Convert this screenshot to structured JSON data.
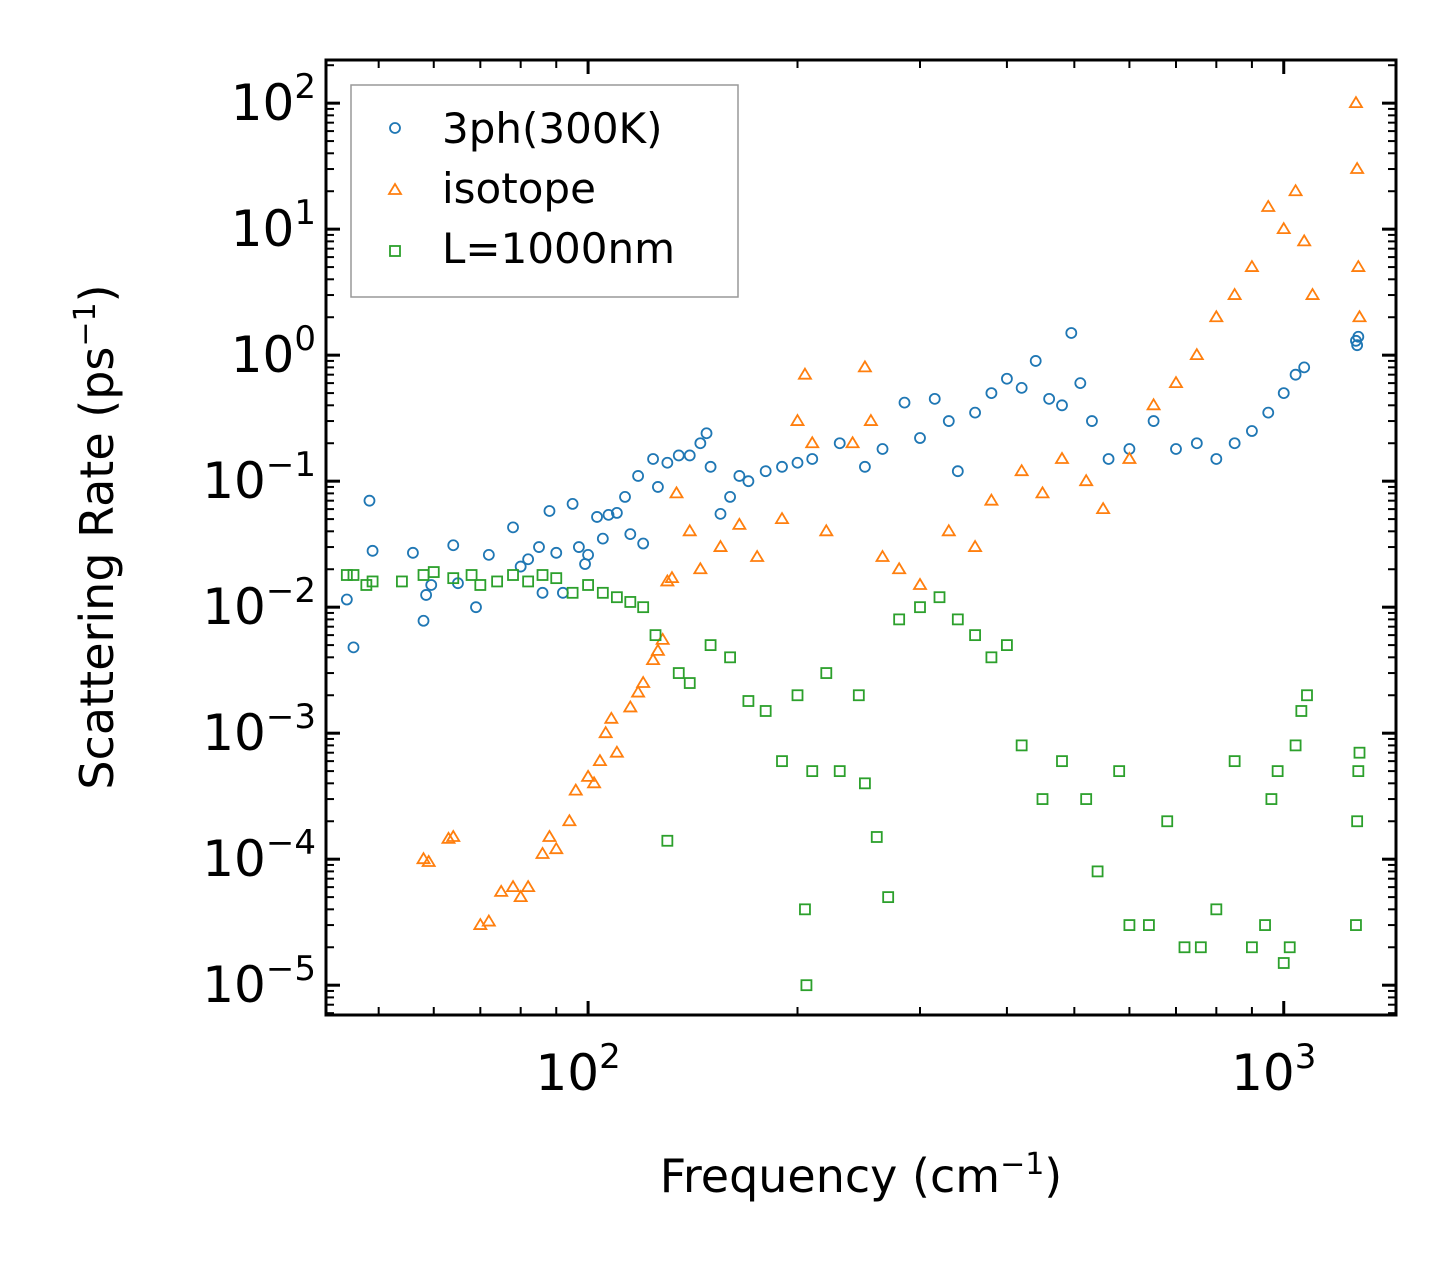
{
  "chart_data": {
    "type": "scatter",
    "xscale": "log",
    "yscale": "log",
    "xlabel": "Frequency (cm",
    "xlabel_sup": "−1",
    "xlabel_tail": ")",
    "ylabel": "Scattering Rate (ps",
    "ylabel_sup": "−1",
    "ylabel_tail": ")",
    "xlim": [
      42,
      1450
    ],
    "ylim": [
      5.8e-06,
      220
    ],
    "x_ticks": [
      {
        "value": 100,
        "base": "10",
        "exp": "2"
      },
      {
        "value": 1000,
        "base": "10",
        "exp": "3"
      }
    ],
    "y_ticks": [
      {
        "value": 100,
        "base": "10",
        "exp": "2"
      },
      {
        "value": 10,
        "base": "10",
        "exp": "1"
      },
      {
        "value": 1,
        "base": "10",
        "exp": "0"
      },
      {
        "value": 0.1,
        "base": "10",
        "exp": "−1"
      },
      {
        "value": 0.01,
        "base": "10",
        "exp": "−2"
      },
      {
        "value": 0.001,
        "base": "10",
        "exp": "−3"
      },
      {
        "value": 0.0001,
        "base": "10",
        "exp": "−4"
      },
      {
        "value": 1e-05,
        "base": "10",
        "exp": "−5"
      }
    ],
    "legend_position": "top-left",
    "series": [
      {
        "name": "3ph(300K)",
        "marker": "circle",
        "color": "#1f77b4",
        "points": [
          [
            45,
            0.0115
          ],
          [
            46,
            0.0048
          ],
          [
            48.5,
            0.07
          ],
          [
            49,
            0.028
          ],
          [
            56,
            0.027
          ],
          [
            58,
            0.0078
          ],
          [
            58.5,
            0.0125
          ],
          [
            59.5,
            0.015
          ],
          [
            64,
            0.031
          ],
          [
            65,
            0.0155
          ],
          [
            69,
            0.01
          ],
          [
            72,
            0.026
          ],
          [
            78,
            0.043
          ],
          [
            80,
            0.021
          ],
          [
            82,
            0.024
          ],
          [
            85,
            0.03
          ],
          [
            86,
            0.013
          ],
          [
            88,
            0.058
          ],
          [
            90,
            0.027
          ],
          [
            92,
            0.013
          ],
          [
            95,
            0.066
          ],
          [
            97,
            0.03
          ],
          [
            99,
            0.022
          ],
          [
            100,
            0.026
          ],
          [
            103,
            0.052
          ],
          [
            105,
            0.035
          ],
          [
            107,
            0.054
          ],
          [
            110,
            0.056
          ],
          [
            113,
            0.075
          ],
          [
            115,
            0.038
          ],
          [
            118,
            0.11
          ],
          [
            120,
            0.032
          ],
          [
            124,
            0.15
          ],
          [
            126,
            0.09
          ],
          [
            130,
            0.14
          ],
          [
            135,
            0.16
          ],
          [
            140,
            0.16
          ],
          [
            145,
            0.2
          ],
          [
            148,
            0.24
          ],
          [
            150,
            0.13
          ],
          [
            155,
            0.055
          ],
          [
            160,
            0.075
          ],
          [
            165,
            0.11
          ],
          [
            170,
            0.1
          ],
          [
            180,
            0.12
          ],
          [
            190,
            0.13
          ],
          [
            200,
            0.14
          ],
          [
            210,
            0.15
          ],
          [
            230,
            0.2
          ],
          [
            250,
            0.13
          ],
          [
            265,
            0.18
          ],
          [
            285,
            0.42
          ],
          [
            300,
            0.22
          ],
          [
            315,
            0.45
          ],
          [
            330,
            0.3
          ],
          [
            340,
            0.12
          ],
          [
            360,
            0.35
          ],
          [
            380,
            0.5
          ],
          [
            400,
            0.65
          ],
          [
            420,
            0.55
          ],
          [
            440,
            0.9
          ],
          [
            460,
            0.45
          ],
          [
            480,
            0.4
          ],
          [
            495,
            1.5
          ],
          [
            510,
            0.6
          ],
          [
            530,
            0.3
          ],
          [
            560,
            0.15
          ],
          [
            600,
            0.18
          ],
          [
            650,
            0.3
          ],
          [
            700,
            0.18
          ],
          [
            750,
            0.2
          ],
          [
            800,
            0.15
          ],
          [
            850,
            0.2
          ],
          [
            900,
            0.25
          ],
          [
            950,
            0.35
          ],
          [
            1000,
            0.5
          ],
          [
            1040,
            0.7
          ],
          [
            1070,
            0.8
          ],
          [
            1270,
            1.3
          ],
          [
            1275,
            1.2
          ],
          [
            1280,
            1.4
          ]
        ]
      },
      {
        "name": "isotope",
        "marker": "triangle",
        "color": "#ff7f0e",
        "points": [
          [
            58,
            0.0001
          ],
          [
            59,
            9.5e-05
          ],
          [
            63,
            0.000145
          ],
          [
            64,
            0.00015
          ],
          [
            70,
            3e-05
          ],
          [
            72,
            3.2e-05
          ],
          [
            75,
            5.5e-05
          ],
          [
            78,
            6e-05
          ],
          [
            80,
            5e-05
          ],
          [
            82,
            6e-05
          ],
          [
            86,
            0.00011
          ],
          [
            88,
            0.00015
          ],
          [
            90,
            0.00012
          ],
          [
            94,
            0.0002
          ],
          [
            96,
            0.00035
          ],
          [
            100,
            0.00045
          ],
          [
            102,
            0.0004
          ],
          [
            104,
            0.0006
          ],
          [
            106,
            0.001
          ],
          [
            108,
            0.0013
          ],
          [
            110,
            0.0007
          ],
          [
            115,
            0.0016
          ],
          [
            118,
            0.0021
          ],
          [
            120,
            0.0025
          ],
          [
            124,
            0.0038
          ],
          [
            126,
            0.0045
          ],
          [
            128,
            0.0055
          ],
          [
            130,
            0.016
          ],
          [
            132,
            0.017
          ],
          [
            134,
            0.08
          ],
          [
            140,
            0.04
          ],
          [
            145,
            0.02
          ],
          [
            155,
            0.03
          ],
          [
            165,
            0.045
          ],
          [
            175,
            0.025
          ],
          [
            190,
            0.05
          ],
          [
            200,
            0.3
          ],
          [
            205,
            0.7
          ],
          [
            210,
            0.2
          ],
          [
            220,
            0.04
          ],
          [
            240,
            0.2
          ],
          [
            250,
            0.8
          ],
          [
            255,
            0.3
          ],
          [
            265,
            0.025
          ],
          [
            280,
            0.02
          ],
          [
            300,
            0.015
          ],
          [
            330,
            0.04
          ],
          [
            360,
            0.03
          ],
          [
            380,
            0.07
          ],
          [
            420,
            0.12
          ],
          [
            450,
            0.08
          ],
          [
            480,
            0.15
          ],
          [
            520,
            0.1
          ],
          [
            550,
            0.06
          ],
          [
            600,
            0.15
          ],
          [
            650,
            0.4
          ],
          [
            700,
            0.6
          ],
          [
            750,
            1.0
          ],
          [
            800,
            2.0
          ],
          [
            850,
            3.0
          ],
          [
            900,
            5.0
          ],
          [
            950,
            15.0
          ],
          [
            1000,
            10.0
          ],
          [
            1040,
            20.0
          ],
          [
            1070,
            8.0
          ],
          [
            1100,
            3.0
          ],
          [
            1270,
            100
          ],
          [
            1275,
            30
          ],
          [
            1280,
            5
          ],
          [
            1285,
            2
          ]
        ]
      },
      {
        "name": "L=1000nm",
        "marker": "square",
        "color": "#2ca02c",
        "points": [
          [
            45,
            0.018
          ],
          [
            46,
            0.018
          ],
          [
            48,
            0.015
          ],
          [
            49,
            0.016
          ],
          [
            54,
            0.016
          ],
          [
            58,
            0.018
          ],
          [
            60,
            0.019
          ],
          [
            64,
            0.017
          ],
          [
            68,
            0.018
          ],
          [
            70,
            0.015
          ],
          [
            74,
            0.016
          ],
          [
            78,
            0.018
          ],
          [
            82,
            0.016
          ],
          [
            86,
            0.018
          ],
          [
            90,
            0.017
          ],
          [
            95,
            0.013
          ],
          [
            100,
            0.015
          ],
          [
            105,
            0.013
          ],
          [
            110,
            0.012
          ],
          [
            115,
            0.011
          ],
          [
            120,
            0.01
          ],
          [
            125,
            0.006
          ],
          [
            130,
            0.00014
          ],
          [
            135,
            0.003
          ],
          [
            140,
            0.0025
          ],
          [
            150,
            0.005
          ],
          [
            160,
            0.004
          ],
          [
            170,
            0.0018
          ],
          [
            180,
            0.0015
          ],
          [
            190,
            0.0006
          ],
          [
            200,
            0.002
          ],
          [
            205,
            4e-05
          ],
          [
            206,
            1e-05
          ],
          [
            210,
            0.0005
          ],
          [
            220,
            0.003
          ],
          [
            230,
            0.0005
          ],
          [
            245,
            0.002
          ],
          [
            250,
            0.0004
          ],
          [
            260,
            0.00015
          ],
          [
            270,
            5e-05
          ],
          [
            280,
            0.008
          ],
          [
            300,
            0.01
          ],
          [
            320,
            0.012
          ],
          [
            340,
            0.008
          ],
          [
            360,
            0.006
          ],
          [
            380,
            0.004
          ],
          [
            400,
            0.005
          ],
          [
            420,
            0.0008
          ],
          [
            450,
            0.0003
          ],
          [
            480,
            0.0006
          ],
          [
            520,
            0.0003
          ],
          [
            540,
            8e-05
          ],
          [
            580,
            0.0005
          ],
          [
            600,
            3e-05
          ],
          [
            640,
            3e-05
          ],
          [
            680,
            0.0002
          ],
          [
            720,
            2e-05
          ],
          [
            760,
            2e-05
          ],
          [
            800,
            4e-05
          ],
          [
            850,
            0.0006
          ],
          [
            900,
            2e-05
          ],
          [
            940,
            3e-05
          ],
          [
            960,
            0.0003
          ],
          [
            980,
            0.0005
          ],
          [
            1000,
            1.5e-05
          ],
          [
            1020,
            2e-05
          ],
          [
            1040,
            0.0008
          ],
          [
            1060,
            0.0015
          ],
          [
            1080,
            0.002
          ],
          [
            1270,
            3e-05
          ],
          [
            1275,
            0.0002
          ],
          [
            1280,
            0.0005
          ],
          [
            1285,
            0.0007
          ]
        ]
      }
    ]
  }
}
